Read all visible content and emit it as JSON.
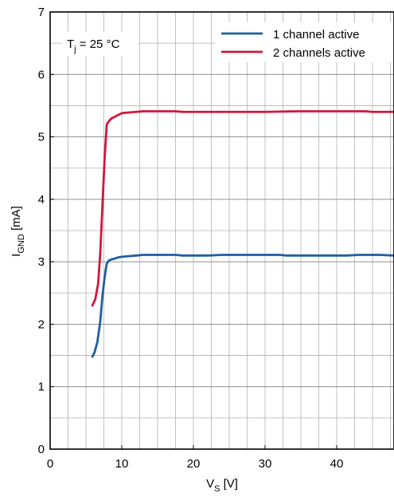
{
  "chart_data": {
    "type": "line",
    "xlabel": {
      "main": "V",
      "sub": "S",
      "unit": " [V]"
    },
    "ylabel": {
      "main": "I",
      "sub": "GND",
      "unit": " [mA]"
    },
    "xlim": [
      0,
      48
    ],
    "ylim": [
      0,
      7
    ],
    "xticks": [
      0,
      10,
      20,
      30,
      40
    ],
    "yticks": [
      0,
      1,
      2,
      3,
      4,
      5,
      6,
      7
    ],
    "x_minor_step": 2.5,
    "y_minor_step": 0.5,
    "grid": true,
    "legend_position": "top-right",
    "annotation": {
      "main": "T",
      "sub": "j",
      "rest": " = 25 °C"
    },
    "series": [
      {
        "name": "1 channel active",
        "color": "#1f5fa0",
        "x": [
          5.9,
          6.2,
          6.6,
          7.0,
          7.3,
          7.6,
          7.9,
          8.2,
          8.6,
          9.0,
          9.5,
          10.0,
          11.0,
          12.0,
          13.0,
          15.0,
          17.5,
          18.5,
          20.0,
          22.0,
          24.0,
          27.0,
          32.0,
          33.0,
          36.0,
          40.0,
          41.5,
          43.0,
          46.0,
          48.0
        ],
        "values": [
          1.48,
          1.55,
          1.72,
          2.05,
          2.45,
          2.75,
          2.97,
          3.02,
          3.04,
          3.05,
          3.07,
          3.08,
          3.09,
          3.1,
          3.11,
          3.11,
          3.11,
          3.1,
          3.1,
          3.1,
          3.11,
          3.11,
          3.11,
          3.1,
          3.1,
          3.1,
          3.1,
          3.11,
          3.11,
          3.1
        ]
      },
      {
        "name": "2 channels active",
        "color": "#d4163c",
        "x": [
          5.9,
          6.3,
          6.7,
          7.0,
          7.3,
          7.6,
          7.9,
          8.2,
          8.6,
          9.0,
          9.5,
          10.0,
          11.0,
          12.0,
          13.0,
          15.0,
          17.5,
          18.5,
          20.0,
          25.0,
          30.0,
          34.5,
          36.0,
          40.0,
          44.0,
          45.0,
          48.0
        ],
        "values": [
          2.3,
          2.4,
          2.65,
          3.15,
          3.9,
          4.65,
          5.2,
          5.25,
          5.3,
          5.32,
          5.35,
          5.38,
          5.39,
          5.4,
          5.41,
          5.41,
          5.41,
          5.4,
          5.4,
          5.4,
          5.4,
          5.41,
          5.41,
          5.41,
          5.41,
          5.4,
          5.4
        ]
      }
    ]
  }
}
